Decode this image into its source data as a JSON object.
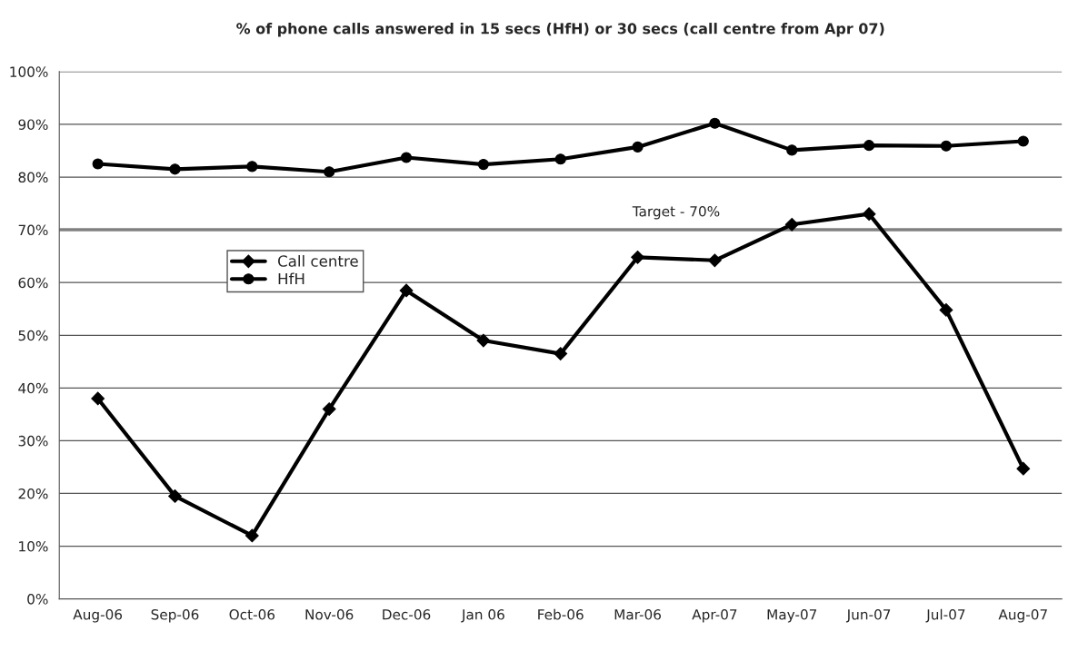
{
  "chart_data": {
    "type": "line",
    "title": "% of phone calls answered in 15 secs (HfH) or 30 secs (call centre from Apr 07)",
    "categories": [
      "Aug-06",
      "Sep-06",
      "Oct-06",
      "Nov-06",
      "Dec-06",
      "Jan 06",
      "Feb-06",
      "Mar-06",
      "Apr-07",
      "May-07",
      "Jun-07",
      "Jul-07",
      "Aug-07"
    ],
    "series": [
      {
        "name": "Call centre",
        "color": "#000000",
        "marker": "diamond",
        "values": [
          38,
          19.5,
          12,
          36,
          58.5,
          49,
          46.5,
          64.8,
          64.2,
          71,
          73,
          54.8,
          24.7
        ]
      },
      {
        "name": "HfH",
        "color": "#000000",
        "marker": "circle",
        "values": [
          82.5,
          81.5,
          82,
          81,
          83.7,
          82.4,
          83.4,
          85.7,
          90.2,
          85.1,
          86,
          85.9,
          86.8
        ]
      }
    ],
    "ylim": [
      0,
      100
    ],
    "yticks": [
      {
        "value": 0,
        "label": "0%"
      },
      {
        "value": 10,
        "label": "10%"
      },
      {
        "value": 20,
        "label": "20%"
      },
      {
        "value": 30,
        "label": "30%"
      },
      {
        "value": 40,
        "label": "40%"
      },
      {
        "value": 50,
        "label": "50%"
      },
      {
        "value": 60,
        "label": "60%"
      },
      {
        "value": 70,
        "label": "70%"
      },
      {
        "value": 80,
        "label": "80%"
      },
      {
        "value": 90,
        "label": "90%"
      },
      {
        "value": 100,
        "label": "100%"
      }
    ],
    "ref_lines": [
      {
        "axis": "y",
        "value": 70,
        "label": "Target - 70%",
        "color": "#808080"
      }
    ],
    "grid": "y",
    "legend": "left",
    "line_style": "solid"
  }
}
